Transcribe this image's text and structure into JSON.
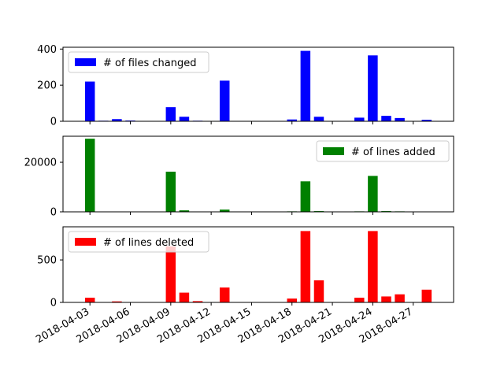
{
  "chart_data": [
    {
      "type": "bar",
      "x": [
        "2018-04-03",
        "2018-04-04",
        "2018-04-05",
        "2018-04-06",
        "2018-04-09",
        "2018-04-10",
        "2018-04-11",
        "2018-04-13",
        "2018-04-18",
        "2018-04-19",
        "2018-04-20",
        "2018-04-23",
        "2018-04-24",
        "2018-04-25",
        "2018-04-26",
        "2018-04-28"
      ],
      "values": [
        220,
        3,
        12,
        4,
        78,
        25,
        3,
        225,
        10,
        390,
        25,
        20,
        365,
        30,
        18,
        8
      ],
      "legend": "# of files changed",
      "legend_position": "upper-left",
      "color": "#0000ff",
      "ylim": [
        0,
        410
      ],
      "yticks": [
        0,
        200,
        400
      ]
    },
    {
      "type": "bar",
      "x": [
        "2018-04-03",
        "2018-04-04",
        "2018-04-05",
        "2018-04-06",
        "2018-04-09",
        "2018-04-10",
        "2018-04-11",
        "2018-04-13",
        "2018-04-18",
        "2018-04-19",
        "2018-04-20",
        "2018-04-23",
        "2018-04-24",
        "2018-04-25",
        "2018-04-26",
        "2018-04-28"
      ],
      "values": [
        29500,
        50,
        100,
        20,
        16200,
        600,
        30,
        900,
        200,
        12300,
        300,
        200,
        14500,
        300,
        200,
        150
      ],
      "legend": "# of lines added",
      "legend_position": "upper-right",
      "color": "#008000",
      "ylim": [
        0,
        30500
      ],
      "yticks": [
        0,
        20000
      ]
    },
    {
      "type": "bar",
      "x": [
        "2018-04-03",
        "2018-04-04",
        "2018-04-05",
        "2018-04-06",
        "2018-04-09",
        "2018-04-10",
        "2018-04-11",
        "2018-04-13",
        "2018-04-18",
        "2018-04-19",
        "2018-04-20",
        "2018-04-23",
        "2018-04-24",
        "2018-04-25",
        "2018-04-26",
        "2018-04-28"
      ],
      "values": [
        55,
        3,
        12,
        3,
        660,
        115,
        15,
        175,
        45,
        840,
        260,
        55,
        840,
        70,
        95,
        150
      ],
      "legend": "# of lines deleted",
      "legend_position": "upper-left",
      "color": "#ff0000",
      "ylim": [
        0,
        890
      ],
      "yticks": [
        0,
        500
      ]
    }
  ],
  "xaxis": {
    "range": [
      "2018-04-01",
      "2018-04-30"
    ],
    "ticks": [
      "2018-04-03",
      "2018-04-06",
      "2018-04-09",
      "2018-04-12",
      "2018-04-15",
      "2018-04-18",
      "2018-04-21",
      "2018-04-24",
      "2018-04-27"
    ]
  }
}
